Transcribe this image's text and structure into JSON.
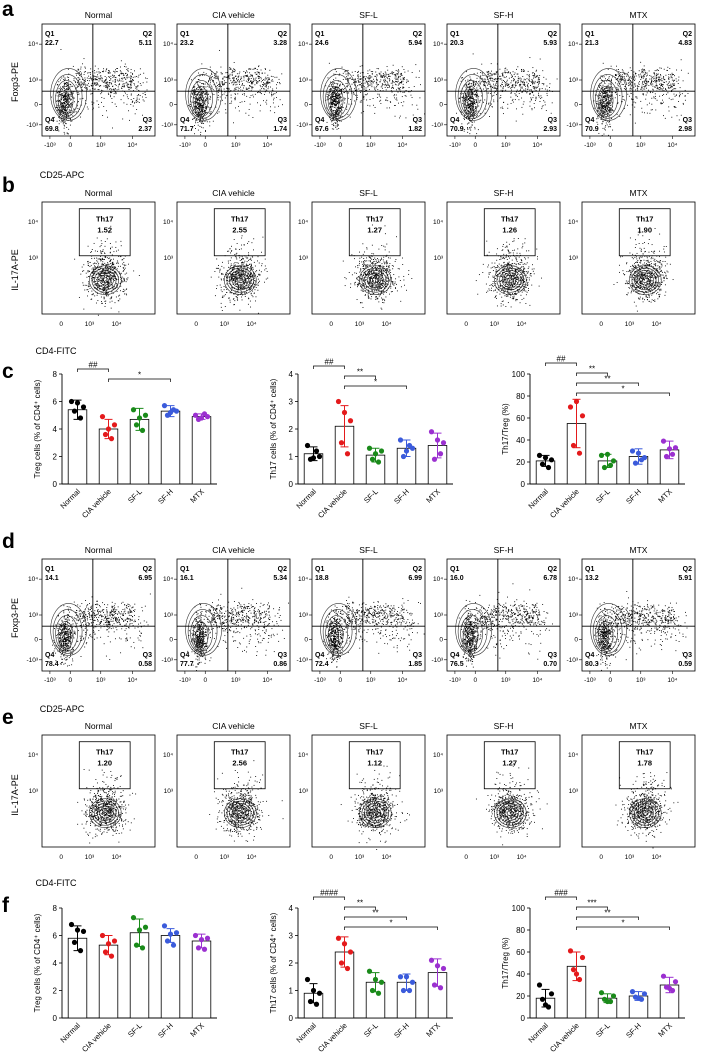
{
  "groups": [
    "Normal",
    "CIA vehicle",
    "SF-L",
    "SF-H",
    "MTX"
  ],
  "panel_letters": [
    "a",
    "b",
    "c",
    "d",
    "e",
    "f"
  ],
  "colors": {
    "Normal": "#000000",
    "CIA vehicle": "#e41a1c",
    "SF-L": "#1a8a1a",
    "SF-H": "#3b5bdb",
    "MTX": "#9b30d0"
  },
  "flow": {
    "treg_xlabel": "CD25-APC",
    "treg_ylabel": "Foxp3-PE",
    "th17_xlabel": "CD4-FITC",
    "th17_ylabel": "IL-17A-PE",
    "quadrant_names": [
      "Q1",
      "Q2",
      "Q3",
      "Q4"
    ],
    "gate_name": "Th17",
    "x_ticks": [
      "-10³",
      "0",
      "10³",
      "10⁴"
    ],
    "y_ticks": [
      "-10³",
      "0",
      "10³",
      "10⁴"
    ],
    "panel_a": [
      {
        "group": "Normal",
        "Q1": "22.7",
        "Q2": "5.11",
        "Q3": "2.37",
        "Q4": "69.8"
      },
      {
        "group": "CIA vehicle",
        "Q1": "23.2",
        "Q2": "3.28",
        "Q3": "1.74",
        "Q4": "71.7"
      },
      {
        "group": "SF-L",
        "Q1": "24.6",
        "Q2": "5.94",
        "Q3": "1.82",
        "Q4": "67.6"
      },
      {
        "group": "SF-H",
        "Q1": "20.3",
        "Q2": "5.93",
        "Q3": "2.93",
        "Q4": "70.9"
      },
      {
        "group": "MTX",
        "Q1": "21.3",
        "Q2": "4.83",
        "Q3": "2.98",
        "Q4": "70.9"
      }
    ],
    "panel_b": [
      {
        "group": "Normal",
        "value": "1.52"
      },
      {
        "group": "CIA vehicle",
        "value": "2.55"
      },
      {
        "group": "SF-L",
        "value": "1.27"
      },
      {
        "group": "SF-H",
        "value": "1.26"
      },
      {
        "group": "MTX",
        "value": "1.90"
      }
    ],
    "panel_d": [
      {
        "group": "Normal",
        "Q1": "14.1",
        "Q2": "6.95",
        "Q3": "0.58",
        "Q4": "78.4"
      },
      {
        "group": "CIA vehicle",
        "Q1": "16.1",
        "Q2": "5.34",
        "Q3": "0.86",
        "Q4": "77.7"
      },
      {
        "group": "SF-L",
        "Q1": "18.8",
        "Q2": "6.99",
        "Q3": "1.85",
        "Q4": "72.4"
      },
      {
        "group": "SF-H",
        "Q1": "16.0",
        "Q2": "6.78",
        "Q3": "0.70",
        "Q4": "76.5"
      },
      {
        "group": "MTX",
        "Q1": "13.2",
        "Q2": "5.91",
        "Q3": "0.59",
        "Q4": "80.3"
      }
    ],
    "panel_e": [
      {
        "group": "Normal",
        "value": "1.20"
      },
      {
        "group": "CIA vehicle",
        "value": "2.56"
      },
      {
        "group": "SF-L",
        "value": "1.12"
      },
      {
        "group": "SF-H",
        "value": "1.27"
      },
      {
        "group": "MTX",
        "value": "1.78"
      }
    ]
  },
  "chart_data": [
    {
      "panel": "c",
      "type": "bar",
      "ylabel": "Treg cells (% of CD4⁺ cells)",
      "categories": [
        "Normal",
        "CIA vehicle",
        "SF-L",
        "SF-H",
        "MTX"
      ],
      "ylim": [
        0,
        8
      ],
      "yticks": [
        0,
        2,
        4,
        6,
        8
      ],
      "means": [
        5.4,
        4.0,
        4.7,
        5.3,
        4.9
      ],
      "sd": [
        0.7,
        0.7,
        0.8,
        0.4,
        0.2
      ],
      "points": [
        [
          6.0,
          5.6,
          5.3,
          4.8,
          5.9
        ],
        [
          4.9,
          4.3,
          3.6,
          3.3,
          4.0
        ],
        [
          5.4,
          5.0,
          4.3,
          3.9,
          4.8
        ],
        [
          5.7,
          5.3,
          5.0,
          5.4,
          5.2
        ],
        [
          5.0,
          4.9,
          4.7,
          5.1,
          4.8
        ]
      ],
      "significance": [
        {
          "from": 0,
          "to": 1,
          "label": "##"
        },
        {
          "from": 1,
          "to": 3,
          "label": "*"
        }
      ]
    },
    {
      "panel": "c",
      "type": "bar",
      "ylabel": "Th17 cells (% of CD4⁺ cells)",
      "categories": [
        "Normal",
        "CIA vehicle",
        "SF-L",
        "SF-H",
        "MTX"
      ],
      "ylim": [
        0,
        4
      ],
      "yticks": [
        0,
        1,
        2,
        3,
        4
      ],
      "means": [
        1.1,
        2.1,
        1.05,
        1.3,
        1.4
      ],
      "sd": [
        0.25,
        0.75,
        0.25,
        0.3,
        0.45
      ],
      "points": [
        [
          1.4,
          1.0,
          0.9,
          1.2,
          0.95
        ],
        [
          3.0,
          2.3,
          1.5,
          1.1,
          2.6
        ],
        [
          1.3,
          1.2,
          0.9,
          0.8,
          1.1
        ],
        [
          1.6,
          1.3,
          1.0,
          1.4,
          1.2
        ],
        [
          1.9,
          1.5,
          0.9,
          1.1,
          1.6
        ]
      ],
      "significance": [
        {
          "from": 0,
          "to": 1,
          "label": "##"
        },
        {
          "from": 1,
          "to": 2,
          "label": "**"
        },
        {
          "from": 1,
          "to": 3,
          "label": "*"
        }
      ]
    },
    {
      "panel": "c",
      "type": "bar",
      "ylabel": "Th17/Treg (%)",
      "categories": [
        "Normal",
        "CIA vehicle",
        "SF-L",
        "SF-H",
        "MTX"
      ],
      "ylim": [
        0,
        100
      ],
      "yticks": [
        0,
        20,
        40,
        60,
        80,
        100
      ],
      "means": [
        21,
        55,
        21,
        25,
        31
      ],
      "sd": [
        5,
        22,
        6,
        7,
        8
      ],
      "points": [
        [
          26,
          22,
          18,
          15,
          24
        ],
        [
          70,
          62,
          35,
          28,
          75
        ],
        [
          26,
          21,
          15,
          17,
          27
        ],
        [
          30,
          24,
          19,
          22,
          28
        ],
        [
          39,
          33,
          25,
          27,
          32
        ]
      ],
      "significance": [
        {
          "from": 0,
          "to": 1,
          "label": "##"
        },
        {
          "from": 1,
          "to": 2,
          "label": "**"
        },
        {
          "from": 1,
          "to": 3,
          "label": "**"
        },
        {
          "from": 1,
          "to": 4,
          "label": "*"
        }
      ]
    },
    {
      "panel": "f",
      "type": "bar",
      "ylabel": "Treg cells (% of CD4⁺ cells)",
      "categories": [
        "Normal",
        "CIA vehicle",
        "SF-L",
        "SF-H",
        "MTX"
      ],
      "ylim": [
        0,
        8
      ],
      "yticks": [
        0,
        2,
        4,
        6,
        8
      ],
      "means": [
        5.8,
        5.3,
        6.2,
        6.0,
        5.6
      ],
      "sd": [
        0.9,
        0.7,
        1.0,
        0.5,
        0.5
      ],
      "points": [
        [
          6.8,
          6.3,
          5.5,
          4.9,
          6.4
        ],
        [
          6.0,
          5.6,
          4.8,
          4.5,
          5.4
        ],
        [
          7.3,
          6.6,
          5.3,
          5.1,
          6.4
        ],
        [
          6.7,
          6.2,
          5.6,
          5.3,
          6.1
        ],
        [
          6.0,
          5.8,
          5.1,
          5.0,
          5.7
        ]
      ],
      "significance": []
    },
    {
      "panel": "f",
      "type": "bar",
      "ylabel": "Th17 cells (% of CD4⁺ cells)",
      "categories": [
        "Normal",
        "CIA vehicle",
        "SF-L",
        "SF-H",
        "MTX"
      ],
      "ylim": [
        0,
        4
      ],
      "yticks": [
        0,
        1,
        2,
        3,
        4
      ],
      "means": [
        0.9,
        2.4,
        1.3,
        1.3,
        1.65
      ],
      "sd": [
        0.35,
        0.55,
        0.35,
        0.3,
        0.5
      ],
      "points": [
        [
          1.4,
          0.9,
          0.6,
          0.5,
          1.0
        ],
        [
          2.9,
          2.4,
          2.0,
          1.8,
          2.7
        ],
        [
          1.7,
          1.3,
          1.0,
          0.9,
          1.4
        ],
        [
          1.5,
          1.3,
          1.0,
          1.0,
          1.5
        ],
        [
          2.1,
          1.8,
          1.2,
          1.1,
          1.9
        ]
      ],
      "significance": [
        {
          "from": 0,
          "to": 1,
          "label": "####"
        },
        {
          "from": 1,
          "to": 2,
          "label": "**"
        },
        {
          "from": 1,
          "to": 3,
          "label": "**"
        },
        {
          "from": 1,
          "to": 4,
          "label": "*"
        }
      ]
    },
    {
      "panel": "f",
      "type": "bar",
      "ylabel": "Th17/Treg (%)",
      "categories": [
        "Normal",
        "CIA vehicle",
        "SF-L",
        "SF-H",
        "MTX"
      ],
      "ylim": [
        0,
        100
      ],
      "yticks": [
        0,
        20,
        40,
        60,
        80,
        100
      ],
      "means": [
        18,
        47,
        18,
        20,
        30
      ],
      "sd": [
        8,
        13,
        4,
        4,
        7
      ],
      "points": [
        [
          30,
          22,
          17,
          10,
          12
        ],
        [
          61,
          55,
          44,
          35,
          40
        ],
        [
          23,
          20,
          17,
          15,
          15
        ],
        [
          24,
          22,
          19,
          17,
          18
        ],
        [
          38,
          33,
          28,
          25,
          27
        ]
      ],
      "significance": [
        {
          "from": 0,
          "to": 1,
          "label": "###"
        },
        {
          "from": 1,
          "to": 2,
          "label": "***"
        },
        {
          "from": 1,
          "to": 3,
          "label": "**"
        },
        {
          "from": 1,
          "to": 4,
          "label": "*"
        }
      ]
    }
  ]
}
